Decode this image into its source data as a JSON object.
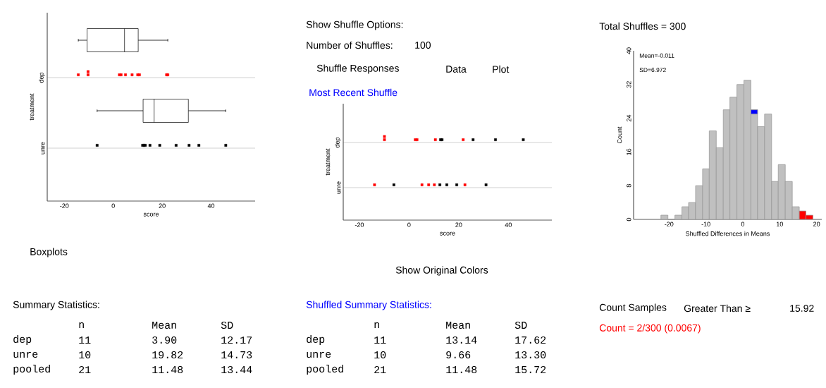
{
  "chart_data": [
    {
      "type": "scatter",
      "orientation": "horizontal",
      "categories": [
        null,
        "dep",
        null,
        "unre"
      ],
      "xlabel": "score",
      "ylabel": "treatment",
      "xlim": [
        -27,
        58
      ],
      "xticks": [
        -20,
        0,
        20,
        40
      ],
      "grid": "y",
      "marker": "square",
      "series": [
        {
          "type": "box",
          "color": "#000000",
          "boxes": [
            {
              "low": -14.3,
              "q1": -10.7,
              "median": 4.6,
              "q3": 10.2,
              "high": 22.3
            },
            null,
            {
              "low": -6.6,
              "q1": 12.2,
              "median": 16.7,
              "q3": 30.7,
              "high": 46.0
            },
            null
          ]
        },
        {
          "type": "scatter",
          "color": "#ff0000",
          "x": [
            "dep",
            "dep",
            "dep",
            "dep",
            "dep",
            "dep",
            "dep",
            "dep",
            "dep",
            "dep",
            "dep"
          ],
          "values": [
            -14.3,
            -10.3,
            -10.3,
            2.5,
            3.2,
            5.0,
            7.7,
            10.0,
            10.7,
            21.8,
            22.3
          ]
        },
        {
          "type": "scatter",
          "color": "#000000",
          "x": [
            "unre",
            "unre",
            "unre",
            "unre",
            "unre",
            "unre",
            "unre",
            "unre",
            "unre",
            "unre"
          ],
          "values": [
            -6.6,
            12.0,
            12.6,
            13.1,
            15.0,
            19.0,
            25.7,
            31.0,
            35.0,
            46.0
          ]
        }
      ]
    },
    {
      "type": "other",
      "annotations": [
        "Show Shuffle Options:",
        "Number of Shuffles:",
        "100",
        "Shuffle Responses",
        "Data",
        "Plot"
      ]
    },
    {
      "type": "scatter",
      "orientation": "horizontal",
      "title": "Most Recent Shuffle",
      "categories": [
        "dep",
        "unre"
      ],
      "xlabel": "score",
      "ylabel": "treatment",
      "xlim": [
        -26.5,
        57.5
      ],
      "xticks": [
        -20,
        0,
        20,
        40
      ],
      "grid": "y",
      "marker": "square",
      "series": [
        {
          "color": "#ff0000",
          "x": [
            "dep",
            "dep",
            "dep",
            "dep",
            "dep",
            "dep",
            "unre",
            "unre",
            "unre",
            "unre",
            "unre"
          ],
          "values": [
            -9.9,
            -9.9,
            2.5,
            3.2,
            10.6,
            21.8,
            -13.9,
            5.2,
            7.9,
            10.2,
            22.5
          ]
        },
        {
          "color": "#000000",
          "x": [
            "dep",
            "dep",
            "dep",
            "dep",
            "dep",
            "unre",
            "unre",
            "unre",
            "unre",
            "unre"
          ],
          "values": [
            12.7,
            13.3,
            25.8,
            34.8,
            46.0,
            -6.1,
            12.4,
            15.2,
            19.2,
            31.0
          ]
        }
      ]
    },
    {
      "type": "histogram",
      "title": "Total Shuffles = 300",
      "xlabel": "Shuffled Differences in Means",
      "ylabel": "Count",
      "xlim": [
        -29.6,
        21.4
      ],
      "ylim": [
        0,
        40
      ],
      "xticks": [
        -20,
        -10,
        0,
        10,
        20
      ],
      "yticks": [
        0,
        8,
        16,
        24,
        32,
        40
      ],
      "annotations": [
        "Mean=-0.011",
        "SD=6.972"
      ],
      "bins": [
        -22.2,
        -20.3,
        -18.4,
        -16.5,
        -14.7,
        -12.8,
        -10.9,
        -9.1,
        -7.2,
        -5.3,
        -3.5,
        -1.6,
        0.3,
        2.2,
        4.0,
        5.9,
        7.8,
        9.6,
        11.5,
        13.4,
        15.3,
        17.1,
        19.0
      ],
      "values": [
        1,
        0,
        1,
        3,
        4,
        8,
        12,
        21,
        17,
        26,
        29,
        32,
        33,
        26,
        22,
        25,
        9,
        13,
        9,
        3,
        2,
        1
      ],
      "colors": [
        "#c0c0c0",
        "#c0c0c0",
        "#c0c0c0",
        "#c0c0c0",
        "#c0c0c0",
        "#c0c0c0",
        "#c0c0c0",
        "#c0c0c0",
        "#c0c0c0",
        "#c0c0c0",
        "#c0c0c0",
        "#c0c0c0",
        "#c0c0c0",
        "#c0c0c0",
        "#c0c0c0",
        "#c0c0c0",
        "#c0c0c0",
        "#c0c0c0",
        "#c0c0c0",
        "#c0c0c0",
        "#ff0000",
        "#ff0000"
      ],
      "series": [
        {
          "type": "bar",
          "color": "#0000ff",
          "x": [
            3.1
          ],
          "base": [
            25
          ],
          "values": [
            1
          ]
        }
      ]
    },
    {
      "type": "other",
      "annotations": [
        "Boxplots"
      ]
    },
    {
      "type": "other",
      "annotations": [
        "Show Original Colors"
      ]
    },
    {
      "type": "other",
      "title": "Summary Statistics:",
      "annotations": [
        "n",
        "Mean",
        "SD",
        "dep",
        "11",
        "3.90",
        "12.17",
        "unre",
        "10",
        "19.82",
        "14.73",
        "pooled",
        "21",
        "11.48",
        "13.44"
      ]
    },
    {
      "type": "other",
      "title": "Shuffled Summary Statistics:",
      "annotations": [
        "n",
        "Mean",
        "SD",
        "dep",
        "11",
        "13.14",
        "17.62",
        "unre",
        "10",
        "9.66",
        "13.30",
        "pooled",
        "21",
        "11.48",
        "15.72"
      ]
    },
    {
      "type": "other",
      "annotations": [
        "Count Samples",
        "Greater Than ≥",
        "15.92",
        "Count = 2/300 (0.0067)"
      ]
    }
  ]
}
